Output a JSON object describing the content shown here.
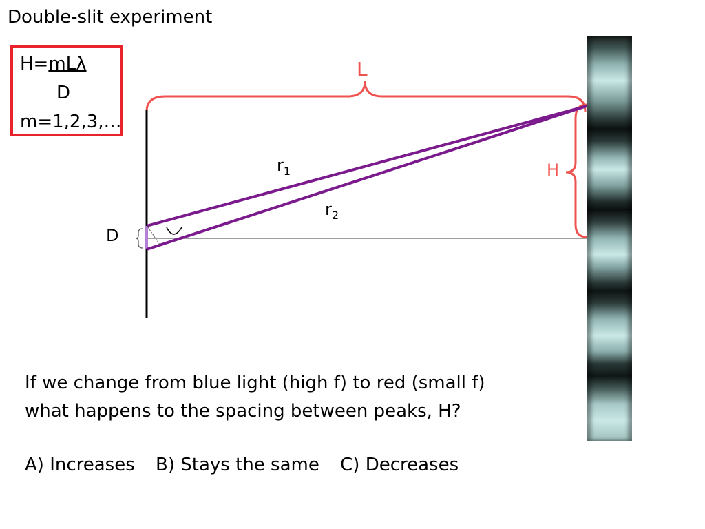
{
  "title": "Double-slit experiment",
  "formula": {
    "H_prefix": "H=",
    "numerator": "mLλ",
    "denominator": "D",
    "m_values": "m=1,2,3,…"
  },
  "labels": {
    "L": "L",
    "H": "H",
    "r1_base": "r",
    "r1_sub": "1",
    "r2_base": "r",
    "r2_sub": "2",
    "D": "D"
  },
  "question": {
    "line1": "If we change from blue light (high f) to red (small f)",
    "line2": "what happens to the spacing between peaks, H?"
  },
  "answers": {
    "a": "A) Increases",
    "b": "B) Stays the same",
    "c": "C) Decreases"
  },
  "colors": {
    "bracket_red": "#ef5350",
    "ray_purple": "#7b1a8c",
    "box_red": "#e8232b"
  }
}
